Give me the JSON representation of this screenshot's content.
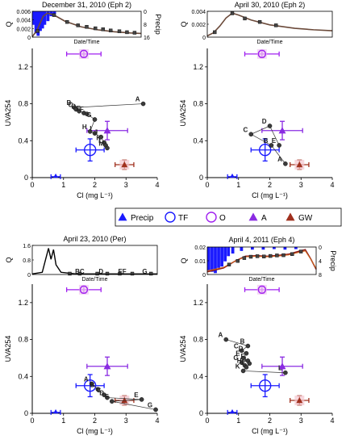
{
  "legend": {
    "items": [
      {
        "label": "Precip",
        "marker": "triangle-filled",
        "color": "#1a1aff"
      },
      {
        "label": "TF",
        "marker": "circle-open",
        "color": "#1a1aff"
      },
      {
        "label": "O",
        "marker": "circle-open",
        "color": "#a020f0"
      },
      {
        "label": "A",
        "marker": "triangle-filled",
        "color": "#8a2be2"
      },
      {
        "label": "GW",
        "marker": "triangle-filled",
        "color": "#a0301e"
      }
    ]
  },
  "colors": {
    "precip": "#1a1aff",
    "tf": "#1a1aff",
    "o": "#a020f0",
    "a": "#8a2be2",
    "gw": "#a0301e",
    "stream": "#333333",
    "streamline": "#6b4a3a",
    "flow": "#8b1a1a"
  },
  "chart_data": [
    {
      "type": "scatter",
      "panel_title": "December 31, 2010 (Eph 2)",
      "xlabel": "Cl (mg L⁻¹)",
      "ylabel": "UVA254",
      "xlim": [
        0,
        4
      ],
      "ylim": [
        0,
        1.4
      ],
      "xticks": [
        "0",
        "1",
        "2",
        "3",
        "4"
      ],
      "yticks": [
        "0",
        "0.4",
        "0.8",
        "1.2"
      ],
      "endmembers": {
        "precip": {
          "x": 0.75,
          "y": 0.01,
          "xerr": 0.15,
          "yerr": 0.0
        },
        "tf": {
          "x": 1.85,
          "y": 0.3,
          "xerr": 0.45,
          "yerr": 0.12
        },
        "o": {
          "x": 1.65,
          "y": 1.34,
          "xerr": 0.55,
          "yerr": 0.04
        },
        "a": {
          "x": 2.4,
          "y": 0.51,
          "xerr": 0.65,
          "yerr": 0.1
        },
        "gw": {
          "x": 2.95,
          "y": 0.14,
          "xerr": 0.3,
          "yerr": 0.05
        }
      },
      "stream_points": [
        {
          "label": "A",
          "x": 3.55,
          "y": 0.8
        },
        {
          "label": "B",
          "x": 1.35,
          "y": 0.76
        },
        {
          "label": "C",
          "x": 1.4,
          "y": 0.74
        },
        {
          "label": "D",
          "x": 1.5,
          "y": 0.72
        },
        {
          "label": "E",
          "x": 1.65,
          "y": 0.7
        },
        {
          "label": "F",
          "x": 1.75,
          "y": 0.69
        },
        {
          "label": "G",
          "x": 2.0,
          "y": 0.63
        },
        {
          "label": "H",
          "x": 1.85,
          "y": 0.5
        },
        {
          "label": "I",
          "x": 2.0,
          "y": 0.48
        },
        {
          "label": "J",
          "x": 2.2,
          "y": 0.44
        },
        {
          "label": "K",
          "x": 2.3,
          "y": 0.38
        },
        {
          "label": "L",
          "x": 2.35,
          "y": 0.35
        },
        {
          "label": "M",
          "x": 2.4,
          "y": 0.32
        }
      ],
      "inset": {
        "ylabel": "Q",
        "xlabel": "Date/Time",
        "y2label": "Precip",
        "yticks": [
          "0.006",
          "0.004",
          "0.002",
          "0"
        ],
        "y2ticks": [
          "0",
          "8",
          "16"
        ],
        "ymax": 0.006,
        "y2max": 16
      }
    },
    {
      "type": "scatter",
      "panel_title": "April 30, 2010 (Eph 2)",
      "xlabel": "Cl (mg L⁻¹)",
      "ylabel": "UVA254",
      "xlim": [
        0,
        4
      ],
      "ylim": [
        0,
        1.4
      ],
      "xticks": [
        "0",
        "1",
        "2",
        "3",
        "4"
      ],
      "yticks": [
        "0",
        "0.4",
        "0.8",
        "1.2"
      ],
      "endmembers": {
        "precip": {
          "x": 0.8,
          "y": 0.01,
          "xerr": 0.15,
          "yerr": 0.0
        },
        "tf": {
          "x": 1.85,
          "y": 0.3,
          "xerr": 0.45,
          "yerr": 0.12
        },
        "o": {
          "x": 1.75,
          "y": 1.34,
          "xerr": 0.55,
          "yerr": 0.04
        },
        "a": {
          "x": 2.4,
          "y": 0.51,
          "xerr": 0.65,
          "yerr": 0.1
        },
        "gw": {
          "x": 2.95,
          "y": 0.14,
          "xerr": 0.3,
          "yerr": 0.05
        }
      },
      "stream_points": [
        {
          "label": "A",
          "x": 2.5,
          "y": 0.15
        },
        {
          "label": "B",
          "x": 2.05,
          "y": 0.35
        },
        {
          "label": "C",
          "x": 1.4,
          "y": 0.47
        },
        {
          "label": "D",
          "x": 2.0,
          "y": 0.56
        },
        {
          "label": "E",
          "x": 2.3,
          "y": 0.35
        }
      ],
      "inset": {
        "ylabel": "Q",
        "xlabel": "Date/Time",
        "yticks": [
          "0.004",
          "0.002",
          "0"
        ],
        "ymax": 0.006
      }
    },
    {
      "type": "scatter",
      "panel_title": "April 23, 2010 (Per)",
      "xlabel": "Cl (mg L⁻¹)",
      "ylabel": "UVA254",
      "xlim": [
        0,
        4
      ],
      "ylim": [
        0,
        1.4
      ],
      "xticks": [
        "0",
        "1",
        "2",
        "3",
        "4"
      ],
      "yticks": [
        "0",
        "0.4",
        "0.8",
        "1.2"
      ],
      "endmembers": {
        "precip": {
          "x": 0.75,
          "y": 0.01,
          "xerr": 0.15,
          "yerr": 0.0
        },
        "tf": {
          "x": 1.85,
          "y": 0.3,
          "xerr": 0.45,
          "yerr": 0.12
        },
        "o": {
          "x": 1.65,
          "y": 1.34,
          "xerr": 0.55,
          "yerr": 0.04
        },
        "a": {
          "x": 2.4,
          "y": 0.51,
          "xerr": 0.65,
          "yerr": 0.1
        },
        "gw": {
          "x": 2.95,
          "y": 0.14,
          "xerr": 0.3,
          "yerr": 0.05
        }
      },
      "stream_points": [
        {
          "label": "A",
          "x": 1.9,
          "y": 0.32
        },
        {
          "label": "B",
          "x": 2.1,
          "y": 0.26
        },
        {
          "label": "C",
          "x": 2.3,
          "y": 0.2
        },
        {
          "label": "D",
          "x": 2.4,
          "y": 0.17
        },
        {
          "label": "E",
          "x": 3.5,
          "y": 0.15
        },
        {
          "label": "F",
          "x": 2.55,
          "y": 0.13
        },
        {
          "label": "G",
          "x": 3.95,
          "y": 0.04
        }
      ],
      "inset": {
        "ylabel": "Q",
        "xlabel": "Date/Time",
        "yticks": [
          "1.6",
          "0.8",
          "0"
        ],
        "ymax": 2.0,
        "axis_letters": [
          "BC",
          "D",
          "EF",
          "G"
        ]
      }
    },
    {
      "type": "scatter",
      "panel_title": "April 4, 2011 (Eph 4)",
      "xlabel": "Cl (mg L⁻¹)",
      "ylabel": "UVA254",
      "xlim": [
        0,
        4
      ],
      "ylim": [
        0,
        1.4
      ],
      "xticks": [
        "0",
        "1",
        "2",
        "3",
        "4"
      ],
      "yticks": [
        "0",
        "0.4",
        "0.8",
        "1.2"
      ],
      "endmembers": {
        "precip": {
          "x": 0.8,
          "y": 0.01,
          "xerr": 0.15,
          "yerr": 0.0
        },
        "tf": {
          "x": 1.85,
          "y": 0.3,
          "xerr": 0.45,
          "yerr": 0.12
        },
        "o": {
          "x": 1.75,
          "y": 1.34,
          "xerr": 0.55,
          "yerr": 0.04
        },
        "a": {
          "x": 2.4,
          "y": 0.51,
          "xerr": 0.65,
          "yerr": 0.1
        },
        "gw": {
          "x": 2.95,
          "y": 0.14,
          "xerr": 0.3,
          "yerr": 0.05
        }
      },
      "stream_points": [
        {
          "label": "A",
          "x": 0.6,
          "y": 0.8
        },
        {
          "label": "B",
          "x": 1.3,
          "y": 0.73
        },
        {
          "label": "C",
          "x": 1.1,
          "y": 0.68
        },
        {
          "label": "D",
          "x": 1.25,
          "y": 0.65
        },
        {
          "label": "E",
          "x": 1.15,
          "y": 0.6
        },
        {
          "label": "F",
          "x": 1.3,
          "y": 0.57
        },
        {
          "label": "G",
          "x": 1.1,
          "y": 0.55
        },
        {
          "label": "H",
          "x": 1.2,
          "y": 0.52
        },
        {
          "label": "I",
          "x": 1.25,
          "y": 0.5
        },
        {
          "label": "J",
          "x": 1.35,
          "y": 0.54
        },
        {
          "label": "K",
          "x": 1.15,
          "y": 0.46
        },
        {
          "label": "L",
          "x": 2.5,
          "y": 0.44
        }
      ],
      "inset": {
        "ylabel": "Q",
        "xlabel": "Date/Time",
        "y2label": "Precip",
        "yticks": [
          "0.02",
          "0.01",
          "0"
        ],
        "y2ticks": [
          "0",
          "4",
          "8"
        ],
        "ymax": 0.025,
        "y2max": 8
      }
    }
  ]
}
